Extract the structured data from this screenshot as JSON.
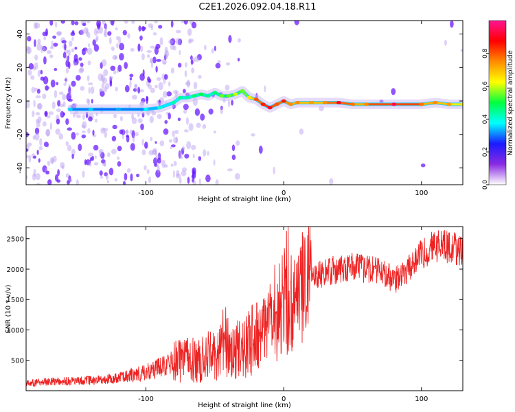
{
  "title": "C2E1.2026.092.04.18.R11",
  "chart_data": [
    {
      "type": "heatmap",
      "title": "C2E1.2026.092.04.18.R11",
      "xlabel": "Height of straight line (km)",
      "ylabel": "Frequency (Hz)",
      "xlim": [
        -187,
        130
      ],
      "ylim": [
        -50,
        48
      ],
      "x_ticks": [
        -100,
        0,
        100
      ],
      "x_tick_labels": [
        "-100",
        "0",
        "100"
      ],
      "y_ticks": [
        -40,
        -20,
        0,
        20,
        40
      ],
      "y_tick_labels": [
        "-40",
        "-20",
        "0",
        "20",
        "40"
      ],
      "colorbar": {
        "label": "Normalized spectral amplitude",
        "range": [
          0,
          1
        ],
        "ticks": [
          0,
          0.2,
          0.4,
          0.6,
          0.8
        ],
        "tick_labels": [
          "0.0",
          "0.2",
          "0.4",
          "0.6",
          "0.8"
        ],
        "colormap": [
          "#ffffff",
          "#8a2be2",
          "#1a1aff",
          "#00ffff",
          "#00ff40",
          "#ffff00",
          "#ff8c00",
          "#ff0000",
          "#ff1493"
        ]
      },
      "ridge": {
        "x": [
          -155,
          -140,
          -120,
          -100,
          -90,
          -80,
          -75,
          -70,
          -65,
          -60,
          -55,
          -50,
          -45,
          -40,
          -35,
          -30,
          -25,
          -20,
          -15,
          -10,
          -5,
          0,
          5,
          10,
          20,
          30,
          40,
          50,
          60,
          80,
          100,
          110,
          120,
          130
        ],
        "y": [
          -5,
          -5,
          -5,
          -5,
          -4,
          -1,
          2,
          2,
          3,
          4,
          3,
          5,
          3,
          3,
          4,
          6,
          2,
          1,
          -2,
          -4,
          -2,
          0,
          -2,
          -1,
          -1,
          -1,
          -1,
          -2,
          -2,
          -2,
          -2,
          -1,
          -2,
          -2
        ],
        "amplitude": [
          0.3,
          0.3,
          0.28,
          0.32,
          0.35,
          0.38,
          0.4,
          0.38,
          0.42,
          0.45,
          0.4,
          0.42,
          0.5,
          0.5,
          0.55,
          0.5,
          0.6,
          0.75,
          0.8,
          0.85,
          0.75,
          0.8,
          0.7,
          0.7,
          0.68,
          0.7,
          0.85,
          0.72,
          0.7,
          0.9,
          0.72,
          0.7,
          0.68,
          0.6
        ]
      }
    },
    {
      "type": "line",
      "xlabel": "Height of straight line (km)",
      "ylabel": "SNR (10 * v/v)",
      "xlim": [
        -187,
        130
      ],
      "ylim": [
        0,
        2700
      ],
      "x_ticks": [
        -100,
        0,
        100
      ],
      "x_tick_labels": [
        "-100",
        "0",
        "100"
      ],
      "y_ticks": [
        500,
        1000,
        1500,
        2000,
        2500
      ],
      "y_tick_labels": [
        "500",
        "1000",
        "1500",
        "2000",
        "2500"
      ],
      "series": [
        {
          "name": "SNR",
          "color": "#ee2222",
          "x": [
            -187,
            -170,
            -150,
            -130,
            -115,
            -100,
            -90,
            -80,
            -70,
            -60,
            -50,
            -40,
            -30,
            -25,
            -20,
            -15,
            -10,
            -5,
            0,
            5,
            10,
            15,
            20,
            25,
            30,
            40,
            50,
            60,
            70,
            75,
            80,
            90,
            100,
            110,
            120,
            130
          ],
          "y": [
            120,
            150,
            160,
            180,
            250,
            300,
            380,
            460,
            520,
            500,
            600,
            700,
            650,
            800,
            900,
            950,
            1050,
            1100,
            1200,
            1500,
            1700,
            1800,
            1850,
            1900,
            1950,
            2000,
            2050,
            2000,
            1950,
            1900,
            1800,
            2000,
            2250,
            2400,
            2350,
            2300
          ]
        }
      ]
    }
  ]
}
